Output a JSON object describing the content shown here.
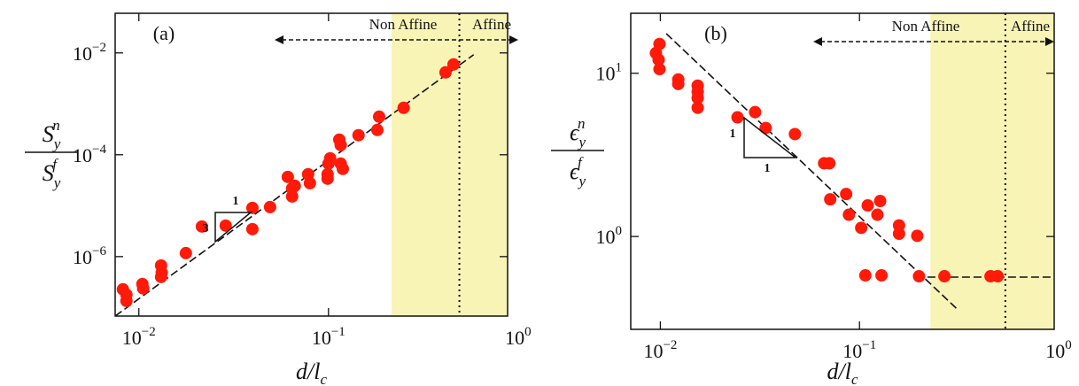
{
  "chart_data": [
    {
      "type": "scatter",
      "panel_label": "(a)",
      "xlabel": {
        "main": "d/l",
        "sub": "c"
      },
      "ylabel": {
        "numerator": {
          "base": "S",
          "sub": "y",
          "sup": "n"
        },
        "denominator": {
          "base": "S",
          "sub": "y",
          "sup": "f"
        }
      },
      "x": [
        0.00824,
        0.0086,
        0.0086,
        0.01044,
        0.01054,
        0.0131,
        0.0132,
        0.0131,
        0.0177,
        0.0215,
        0.0287,
        0.0397,
        0.0397,
        0.0492,
        0.061,
        0.0643,
        0.0643,
        0.0664,
        0.0781,
        0.0798,
        0.0989,
        0.1,
        0.102,
        0.0989,
        0.114,
        0.116,
        0.116,
        0.119,
        0.144,
        0.181,
        0.185,
        0.249,
        0.414,
        0.456
      ],
      "y": [
        2.28e-07,
        1.79e-07,
        1.35e-07,
        2.89e-07,
        2.37e-07,
        6.7e-07,
        4.86e-07,
        3.98e-07,
        1.17e-06,
        3.9e-06,
        4.06e-06,
        9.05e-06,
        3.46e-06,
        9.4e-06,
        3.67e-05,
        2.18e-05,
        1.52e-05,
        2.46e-05,
        4.14e-05,
        2.77e-05,
        3.39e-05,
        6.7e-05,
        8.5e-05,
        4.14e-05,
        0.000198,
        0.000155,
        6.7e-05,
        5.27e-05,
        0.000242,
        0.000307,
        0.00056,
        0.000835,
        0.00414,
        0.00594
      ],
      "color": "#ff1a0a",
      "log_x": true,
      "log_y": true,
      "xlim": [
        0.0075,
        0.88
      ],
      "ylim": [
        6.8e-08,
        0.06
      ],
      "xticks": [
        {
          "value": 0.01,
          "label": "10",
          "exponent": "−2"
        },
        {
          "value": 0.1,
          "label": "10",
          "exponent": "−1"
        },
        {
          "value": 1,
          "label": "10",
          "exponent": "0"
        }
      ],
      "yticks": [
        {
          "value": 1e-06,
          "label": "10",
          "exponent": "−6"
        },
        {
          "value": 0.0001,
          "label": "10",
          "exponent": "−4"
        },
        {
          "value": 0.01,
          "label": "10",
          "exponent": "−2"
        }
      ],
      "fit_lines": [
        {
          "x": [
            0.0075,
            0.583
          ],
          "y": [
            6.8e-08,
            0.00923
          ]
        }
      ],
      "shaded_x": [
        0.215,
        0.88
      ],
      "shade_color": "#f8f4b6",
      "vline_x": 0.49,
      "annotations": {
        "non_affine": "Non Affine",
        "affine": "Affine",
        "slope_run": "1",
        "slope_rise": "3"
      }
    },
    {
      "type": "scatter",
      "panel_label": "(b)",
      "xlabel": {
        "main": "d/l",
        "sub": "c"
      },
      "ylabel": {
        "numerator": {
          "base": "ϵ",
          "sub": "y",
          "sup": "n"
        },
        "denominator": {
          "base": "ϵ",
          "sub": "y",
          "sup": "f"
        }
      },
      "x": [
        0.0095,
        0.0099,
        0.0098,
        0.0099,
        0.0123,
        0.0123,
        0.0154,
        0.0154,
        0.0154,
        0.0154,
        0.0244,
        0.0299,
        0.0338,
        0.0474,
        0.0664,
        0.0706,
        0.0713,
        0.0857,
        0.0885,
        0.11,
        0.123,
        0.127,
        0.158,
        0.158,
        0.195,
        0.102,
        0.107,
        0.129,
        0.199,
        0.267,
        0.455,
        0.494
      ],
      "y": [
        13.3,
        15.1,
        12.1,
        10.6,
        9.16,
        8.6,
        8.4,
        7.7,
        7.06,
        6.15,
        5.37,
        5.78,
        4.62,
        4.24,
        2.81,
        2.81,
        1.69,
        1.82,
        1.36,
        1.55,
        1.36,
        1.65,
        1.17,
        1.04,
        1.01,
        1.13,
        0.578,
        0.578,
        0.571,
        0.571,
        0.571,
        0.571
      ],
      "color": "#ff1a0a",
      "log_x": true,
      "log_y": true,
      "xlim": [
        0.0071,
        0.95
      ],
      "ylim": [
        0.27,
        23.3
      ],
      "xticks": [
        {
          "value": 0.01,
          "label": "10",
          "exponent": "−2"
        },
        {
          "value": 0.1,
          "label": "10",
          "exponent": "−1"
        },
        {
          "value": 1,
          "label": "10",
          "exponent": "0"
        }
      ],
      "yticks": [
        {
          "value": 1,
          "label": "10",
          "exponent": "0"
        },
        {
          "value": 10,
          "label": "10",
          "exponent": "1"
        }
      ],
      "fit_lines": [
        {
          "x": [
            0.0107,
            0.308
          ],
          "y": [
            17.5,
            0.361
          ]
        },
        {
          "x": [
            0.192,
            0.95
          ],
          "y": [
            0.564,
            0.564
          ]
        }
      ],
      "shaded_x": [
        0.227,
        0.95
      ],
      "shade_color": "#f8f4b6",
      "vline_x": 0.54,
      "annotations": {
        "non_affine": "Non Affine",
        "affine": "Affine",
        "slope_run": "1",
        "slope_rise": "1"
      }
    }
  ]
}
